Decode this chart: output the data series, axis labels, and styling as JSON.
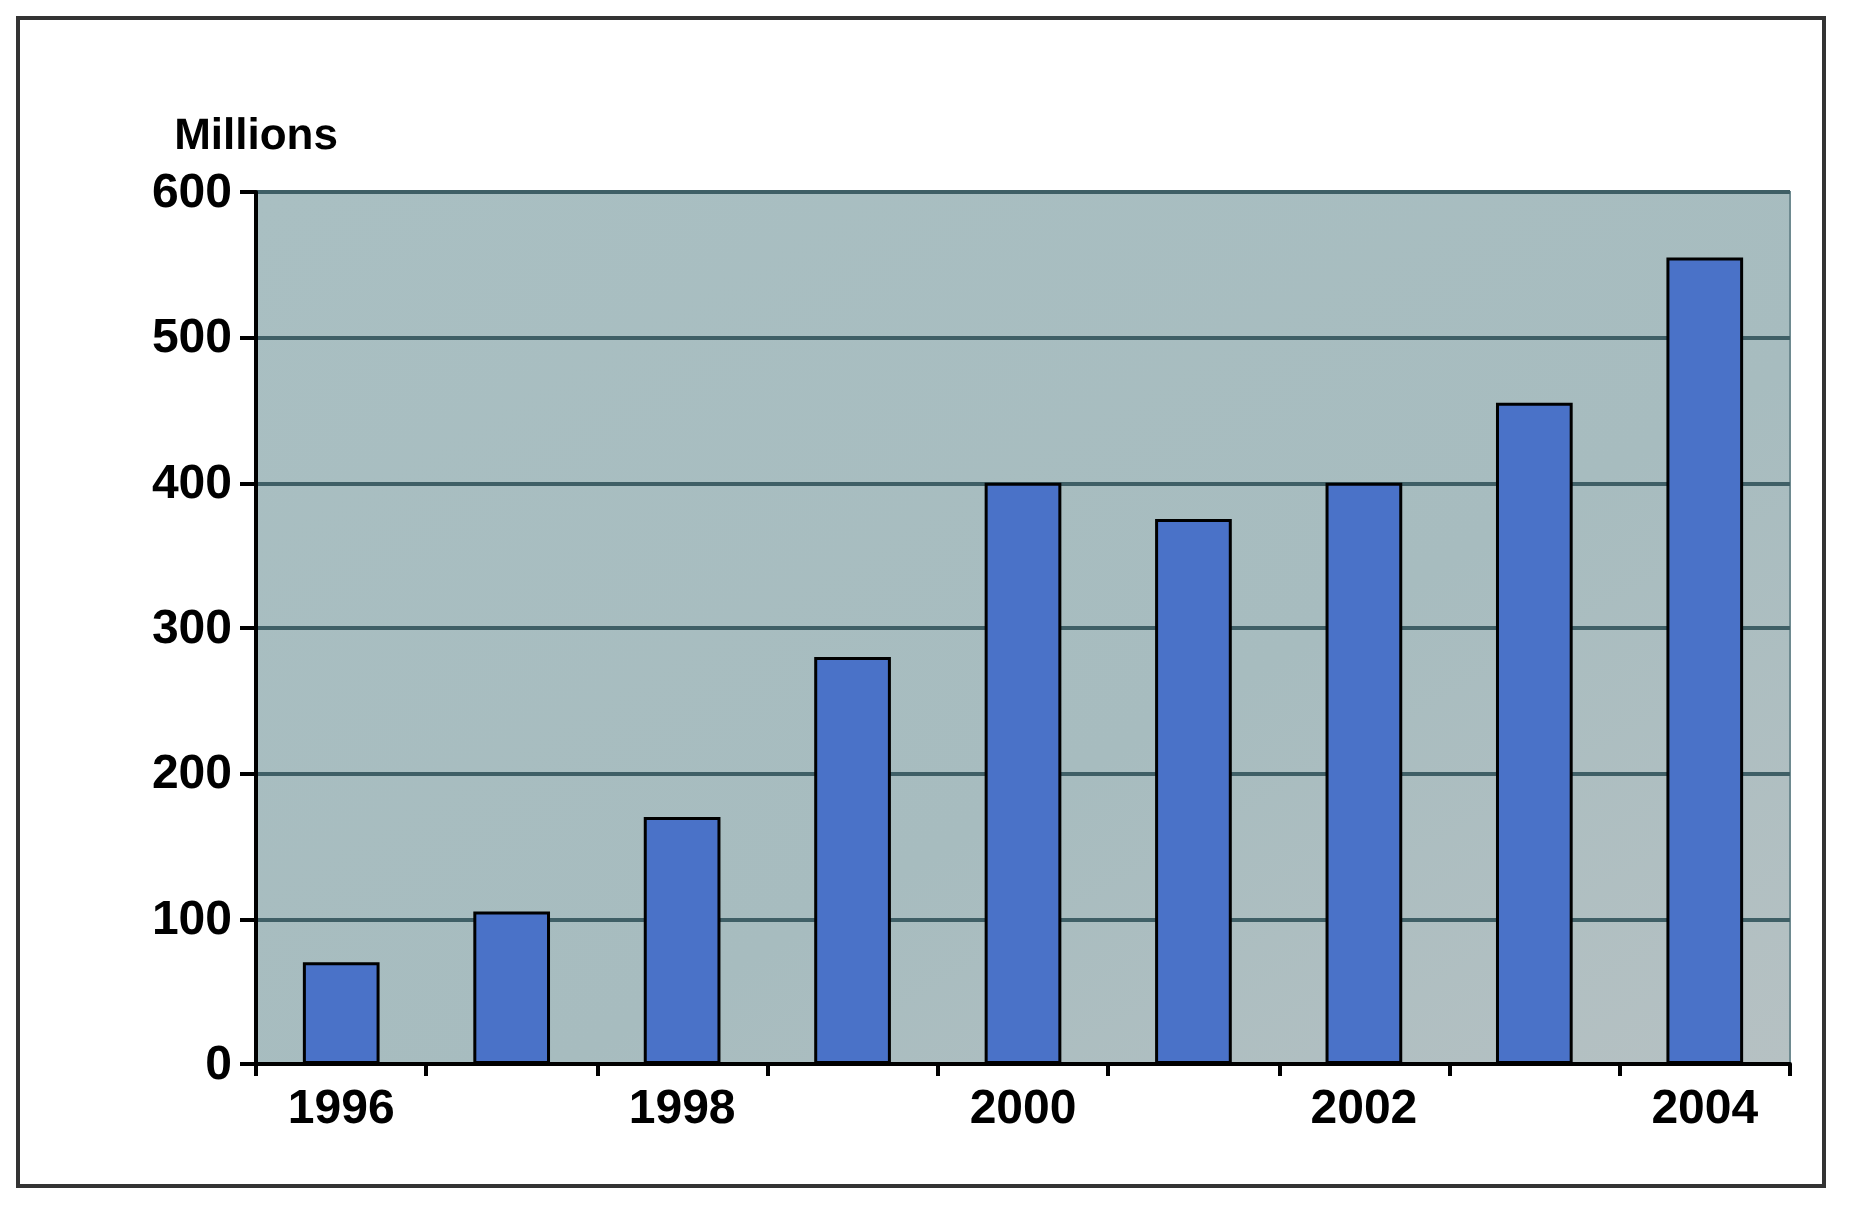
{
  "chart_data": {
    "type": "bar",
    "ylabel": "Millions",
    "categories": [
      "1996",
      null,
      "1998",
      null,
      "2000",
      null,
      "2002",
      null,
      "2004"
    ],
    "values": [
      70,
      105,
      170,
      280,
      400,
      375,
      400,
      455,
      555
    ],
    "color": "#4a72c8",
    "ylim": [
      0,
      600
    ],
    "yticks": [
      0,
      100,
      200,
      300,
      400,
      500,
      600
    ],
    "grid": "y"
  }
}
